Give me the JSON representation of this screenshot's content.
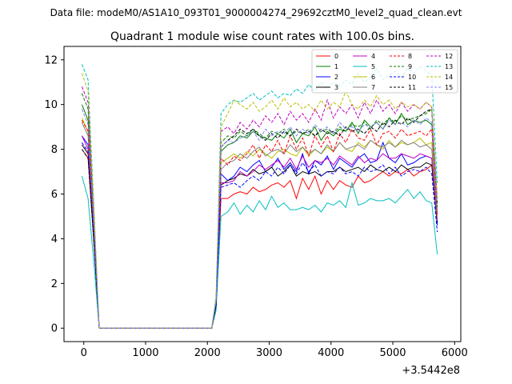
{
  "chart_data": {
    "type": "line",
    "suptitle": "Data file: modeM0/AS1A10_093T01_9000004274_29692cztM0_level2_quad_clean.evt",
    "title": "Quadrant 1 module wise count rates with 100.0s bins.",
    "xlabel": "",
    "ylabel": "",
    "x_offset_label": "+3.5442e8",
    "xlim": [
      -320,
      6100
    ],
    "ylim": [
      -0.6,
      12.6
    ],
    "xticks": [
      0,
      1000,
      2000,
      3000,
      4000,
      5000,
      6000
    ],
    "yticks": [
      0,
      2,
      4,
      6,
      8,
      10,
      12
    ],
    "grid": false,
    "legend_position": "top-right",
    "x": [
      -30,
      70,
      170,
      250,
      2070,
      2140,
      2220,
      2330,
      2430,
      2530,
      2640,
      2740,
      2840,
      2940,
      3040,
      3140,
      3240,
      3340,
      3440,
      3540,
      3640,
      3740,
      3840,
      3940,
      4040,
      4140,
      4240,
      4340,
      4440,
      4540,
      4640,
      4740,
      4840,
      4940,
      5040,
      5140,
      5240,
      5340,
      5440,
      5540,
      5630,
      5720
    ],
    "series": [
      {
        "name": "0",
        "color": "#ff0000",
        "dash": "solid",
        "values": [
          8.0,
          7.6,
          3.5,
          0,
          0,
          1.0,
          5.8,
          5.8,
          6.0,
          6.1,
          6.0,
          6.3,
          6.1,
          6.2,
          6.4,
          6.5,
          6.3,
          6.6,
          5.8,
          6.7,
          6.2,
          6.8,
          6.0,
          6.6,
          6.2,
          6.6,
          6.4,
          6.3,
          6.8,
          6.5,
          6.6,
          6.8,
          7.0,
          6.8,
          7.0,
          6.9,
          7.1,
          6.8,
          7.0,
          7.1,
          7.3,
          4.8
        ]
      },
      {
        "name": "1",
        "color": "#008000",
        "dash": "solid",
        "values": [
          10.0,
          9.3,
          4.2,
          0,
          0,
          1.2,
          7.9,
          8.2,
          8.3,
          8.6,
          8.5,
          8.8,
          8.6,
          8.5,
          8.4,
          8.7,
          8.5,
          8.9,
          8.3,
          8.7,
          8.6,
          9.0,
          8.4,
          8.8,
          8.6,
          8.9,
          8.8,
          9.2,
          8.7,
          9.3,
          9.0,
          9.2,
          8.9,
          9.4,
          9.1,
          9.6,
          9.1,
          9.3,
          9.2,
          9.3,
          9.1,
          5.2
        ]
      },
      {
        "name": "2",
        "color": "#0000ff",
        "dash": "solid",
        "values": [
          8.6,
          8.2,
          3.8,
          0,
          0,
          1.0,
          6.9,
          6.6,
          6.8,
          7.2,
          7.0,
          7.3,
          7.5,
          7.0,
          7.2,
          7.6,
          7.1,
          7.4,
          7.0,
          7.8,
          6.9,
          7.5,
          7.3,
          7.7,
          7.1,
          7.6,
          7.4,
          7.2,
          7.6,
          7.8,
          7.4,
          7.5,
          8.3,
          7.6,
          7.4,
          7.8,
          7.3,
          7.4,
          7.6,
          7.7,
          7.6,
          4.6
        ]
      },
      {
        "name": "3",
        "color": "#000000",
        "dash": "solid",
        "values": [
          8.2,
          7.8,
          3.7,
          0,
          0,
          1.0,
          6.4,
          6.6,
          6.7,
          6.9,
          6.8,
          7.1,
          6.9,
          7.0,
          7.2,
          6.8,
          7.0,
          7.3,
          6.8,
          7.0,
          6.9,
          7.0,
          6.8,
          7.0,
          7.0,
          7.2,
          7.0,
          7.1,
          7.2,
          7.0,
          7.3,
          7.1,
          7.0,
          7.2,
          7.0,
          7.3,
          7.1,
          7.2,
          7.2,
          7.4,
          7.3,
          4.7
        ]
      },
      {
        "name": "4",
        "color": "#bf00bf",
        "dash": "solid",
        "values": [
          8.6,
          8.0,
          3.8,
          0,
          0,
          1.0,
          6.5,
          6.5,
          6.6,
          7.0,
          6.8,
          7.0,
          7.3,
          7.1,
          7.3,
          7.5,
          7.2,
          7.6,
          7.1,
          7.7,
          7.2,
          7.5,
          7.4,
          7.6,
          7.3,
          7.7,
          7.5,
          7.3,
          7.7,
          7.4,
          7.6,
          7.5,
          7.8,
          7.6,
          7.6,
          7.8,
          7.7,
          7.6,
          7.8,
          7.7,
          7.6,
          4.8
        ]
      },
      {
        "name": "5",
        "color": "#00bfbf",
        "dash": "solid",
        "values": [
          6.8,
          5.8,
          2.7,
          0,
          0,
          0.8,
          5.0,
          5.2,
          5.6,
          5.1,
          5.5,
          5.2,
          5.7,
          5.3,
          5.9,
          5.4,
          5.6,
          5.3,
          5.3,
          5.4,
          5.3,
          5.5,
          5.2,
          5.6,
          5.5,
          5.7,
          5.4,
          6.5,
          5.5,
          5.6,
          5.8,
          5.7,
          5.7,
          5.8,
          5.6,
          5.9,
          6.2,
          5.8,
          6.1,
          5.7,
          5.6,
          3.3
        ]
      },
      {
        "name": "6",
        "color": "#bfbf00",
        "dash": "solid",
        "values": [
          9.4,
          8.8,
          4.0,
          0,
          0,
          1.1,
          7.4,
          7.6,
          7.8,
          7.6,
          7.9,
          7.7,
          8.0,
          7.8,
          7.6,
          7.9,
          8.0,
          7.8,
          7.7,
          8.1,
          7.7,
          8.0,
          7.8,
          8.1,
          7.9,
          8.3,
          8.0,
          7.9,
          8.3,
          8.1,
          8.4,
          8.2,
          8.0,
          8.4,
          8.1,
          8.3,
          8.2,
          8.3,
          8.5,
          8.2,
          8.3,
          5.0
        ]
      },
      {
        "name": "7",
        "color": "#808080",
        "dash": "solid",
        "values": [
          9.2,
          8.6,
          3.9,
          0,
          0,
          1.1,
          7.1,
          7.4,
          7.5,
          7.8,
          7.6,
          7.9,
          8.1,
          7.7,
          7.9,
          8.0,
          7.8,
          8.2,
          7.9,
          8.1,
          7.8,
          8.0,
          7.8,
          8.2,
          7.9,
          8.3,
          8.0,
          8.1,
          8.2,
          8.0,
          8.4,
          8.2,
          8.1,
          8.3,
          8.1,
          8.4,
          8.2,
          8.3,
          8.1,
          8.2,
          8.0,
          4.9
        ]
      },
      {
        "name": "8",
        "color": "#ff0000",
        "dash": "dashed",
        "values": [
          9.3,
          8.8,
          4.1,
          0,
          0,
          1.1,
          7.6,
          7.3,
          7.7,
          7.5,
          7.8,
          8.2,
          7.6,
          8.2,
          7.9,
          8.4,
          7.8,
          8.6,
          8.0,
          8.5,
          7.7,
          8.6,
          8.1,
          8.6,
          7.9,
          8.7,
          8.3,
          8.9,
          8.5,
          8.4,
          8.9,
          8.2,
          8.7,
          8.8,
          8.5,
          8.9,
          8.6,
          8.7,
          8.8,
          8.6,
          8.9,
          5.0
        ]
      },
      {
        "name": "9",
        "color": "#008000",
        "dash": "dashed",
        "values": [
          10.5,
          9.8,
          4.4,
          0,
          0,
          1.2,
          8.3,
          8.6,
          8.5,
          8.8,
          8.6,
          8.9,
          8.7,
          8.5,
          8.8,
          8.7,
          8.9,
          8.6,
          8.8,
          8.7,
          8.9,
          8.6,
          8.8,
          8.9,
          8.7,
          9.0,
          8.8,
          9.1,
          9.0,
          9.2,
          8.9,
          9.3,
          9.1,
          9.4,
          9.2,
          9.5,
          9.3,
          9.4,
          9.5,
          9.6,
          9.8,
          5.4
        ]
      },
      {
        "name": "10",
        "color": "#0000ff",
        "dash": "dashed",
        "values": [
          8.3,
          7.9,
          3.7,
          0,
          0,
          1.0,
          6.3,
          6.4,
          6.5,
          6.3,
          6.6,
          6.8,
          6.6,
          7.0,
          6.8,
          7.2,
          6.9,
          7.3,
          6.9,
          7.4,
          7.0,
          7.3,
          6.8,
          7.0,
          6.9,
          7.2,
          6.9,
          7.0,
          6.8,
          7.2,
          7.0,
          7.1,
          7.3,
          6.9,
          7.2,
          6.8,
          7.0,
          7.1,
          7.0,
          7.2,
          6.9,
          4.3
        ]
      },
      {
        "name": "11",
        "color": "#000000",
        "dash": "dashed",
        "values": [
          8.0,
          7.6,
          3.6,
          0,
          0,
          1.0,
          8.1,
          8.4,
          8.6,
          8.9,
          8.7,
          8.9,
          8.6,
          8.4,
          8.7,
          8.5,
          8.8,
          8.6,
          8.9,
          8.7,
          8.8,
          8.6,
          8.9,
          8.7,
          8.8,
          8.6,
          9.0,
          8.8,
          8.9,
          8.7,
          9.0,
          8.8,
          9.2,
          9.0,
          9.3,
          9.1,
          9.4,
          9.2,
          9.5,
          9.7,
          9.8,
          5.5
        ]
      },
      {
        "name": "12",
        "color": "#bf00bf",
        "dash": "dashed",
        "values": [
          10.8,
          10.1,
          4.6,
          0,
          0,
          1.3,
          8.8,
          9.0,
          8.7,
          9.2,
          8.9,
          9.3,
          9.0,
          9.5,
          9.2,
          9.6,
          9.1,
          9.7,
          9.3,
          9.6,
          9.2,
          9.8,
          9.3,
          10.2,
          9.4,
          9.9,
          9.6,
          10.0,
          9.4,
          10.1,
          9.6,
          10.2,
          9.7,
          10.0,
          9.6,
          10.1,
          9.7,
          10.0,
          9.8,
          10.1,
          9.9,
          5.8
        ]
      },
      {
        "name": "13",
        "color": "#00bfbf",
        "dash": "dashed",
        "values": [
          11.8,
          11.1,
          5.0,
          0,
          0,
          1.4,
          9.6,
          10.0,
          10.2,
          10.1,
          10.3,
          10.5,
          10.2,
          10.4,
          10.6,
          10.3,
          10.5,
          10.4,
          10.7,
          10.5,
          10.9,
          10.6,
          11.0,
          10.7,
          11.0,
          10.8,
          11.1,
          10.9,
          11.4,
          11.0,
          11.2,
          11.6,
          11.1,
          11.3,
          11.5,
          11.2,
          11.6,
          11.4,
          11.7,
          11.5,
          11.3,
          6.5
        ]
      },
      {
        "name": "14",
        "color": "#bfbf00",
        "dash": "dashed",
        "values": [
          11.4,
          10.6,
          4.8,
          0,
          0,
          1.3,
          9.0,
          9.6,
          10.2,
          10.0,
          9.8,
          10.1,
          9.7,
          9.9,
          10.2,
          9.8,
          10.3,
          9.9,
          10.1,
          9.8,
          10.0,
          9.7,
          10.2,
          9.8,
          10.1,
          9.9,
          10.6,
          10.0,
          9.8,
          10.2,
          9.9,
          10.4,
          10.0,
          10.2,
          9.8,
          10.1,
          9.9,
          10.0,
          9.8,
          10.1,
          9.9,
          5.7
        ]
      },
      {
        "name": "15",
        "color": "#8080ff",
        "dash": "dashed",
        "values": [
          9.8,
          9.1,
          4.2,
          0,
          0,
          1.2,
          8.1,
          8.4,
          8.3,
          8.5,
          8.6,
          8.8,
          8.4,
          8.9,
          8.6,
          8.8,
          8.7,
          9.0,
          8.6,
          8.9,
          8.7,
          9.1,
          8.8,
          9.0,
          8.7,
          9.2,
          8.9,
          9.0,
          8.8,
          9.1,
          9.0,
          9.2,
          8.9,
          9.3,
          9.1,
          9.2,
          9.0,
          9.3,
          9.1,
          9.4,
          9.2,
          5.3
        ]
      }
    ]
  }
}
